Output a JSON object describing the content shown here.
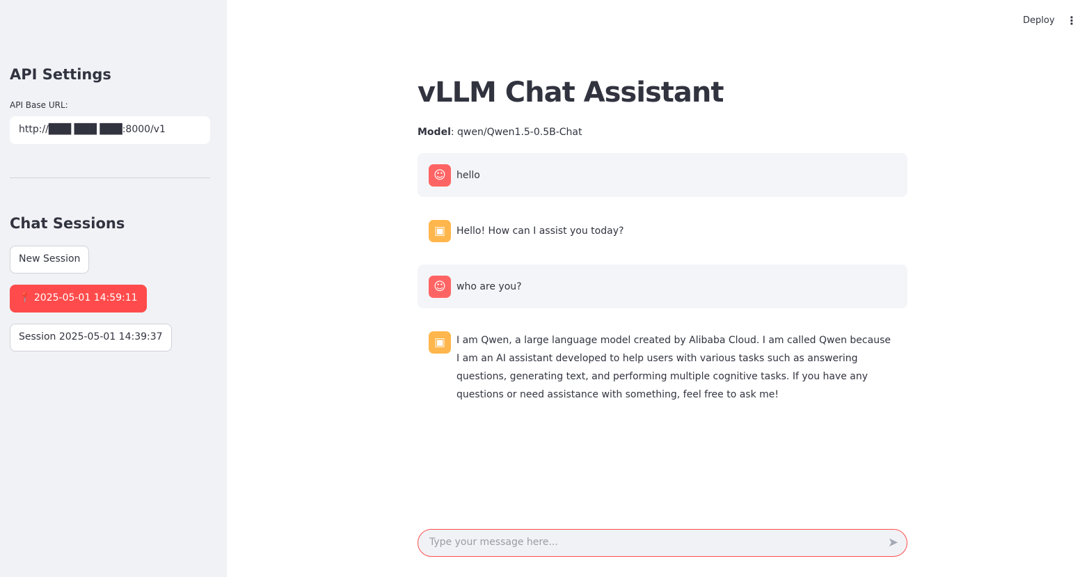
{
  "sidebar": {
    "api_heading": "API Settings",
    "api_label": "API Base URL:",
    "api_value": "http://███ ███ ███:8000/v1",
    "sessions_heading": "Chat Sessions",
    "new_session": "New Session",
    "sessions": [
      {
        "label": "📍 2025-05-01 14:59:11",
        "active": true
      },
      {
        "label": "Session 2025-05-01 14:39:37",
        "active": false
      }
    ]
  },
  "header": {
    "deploy": "Deploy",
    "menu_icon": "vertical-ellipsis-icon"
  },
  "main": {
    "title": "vLLM Chat Assistant",
    "model_label": "Model",
    "model_value": ": qwen/Qwen1.5-0.5B-Chat",
    "messages": [
      {
        "role": "user",
        "text": "hello"
      },
      {
        "role": "assistant",
        "text": "Hello! How can I assist you today?"
      },
      {
        "role": "user",
        "text": "who are you?"
      },
      {
        "role": "assistant",
        "text": "I am Qwen, a large language model created by Alibaba Cloud. I am called Qwen because I am an AI assistant developed to help users with various tasks such as answering questions, generating text, and performing multiple cognitive tasks. If you have any questions or need assistance with something, feel free to ask me!"
      }
    ],
    "input_placeholder": "Type your message here..."
  },
  "colors": {
    "accent": "#ff4b4b",
    "user_avatar": "#ff6464",
    "bot_avatar": "#ffb64c"
  }
}
